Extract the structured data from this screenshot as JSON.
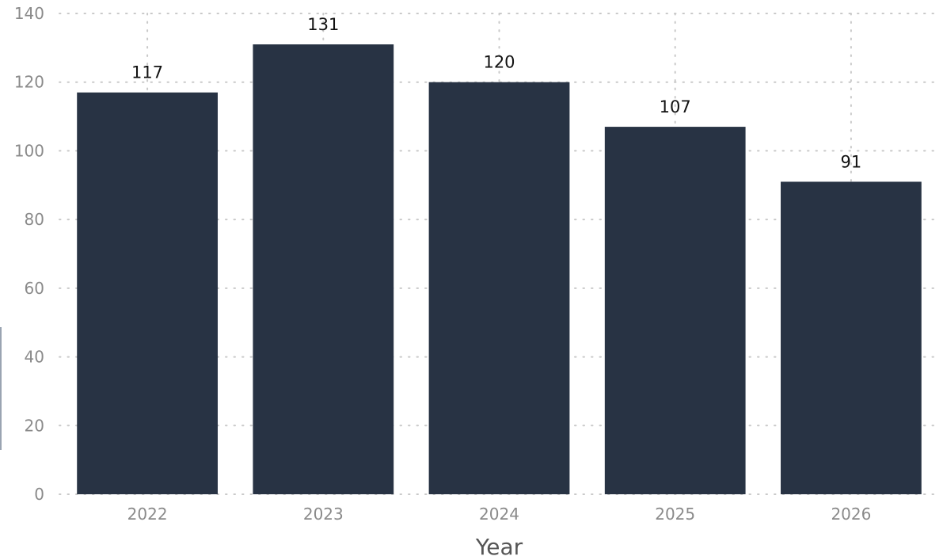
{
  "chart_data": {
    "type": "bar",
    "categories": [
      "2022",
      "2023",
      "2024",
      "2025",
      "2026"
    ],
    "values": [
      117,
      131,
      120,
      107,
      91
    ],
    "title": "",
    "xlabel": "Year",
    "ylabel": "",
    "ylim": [
      0,
      140
    ],
    "yticks": [
      0,
      20,
      40,
      60,
      80,
      100,
      120,
      140
    ],
    "grid": true,
    "data_labels": true,
    "bar_color": "#283344"
  }
}
